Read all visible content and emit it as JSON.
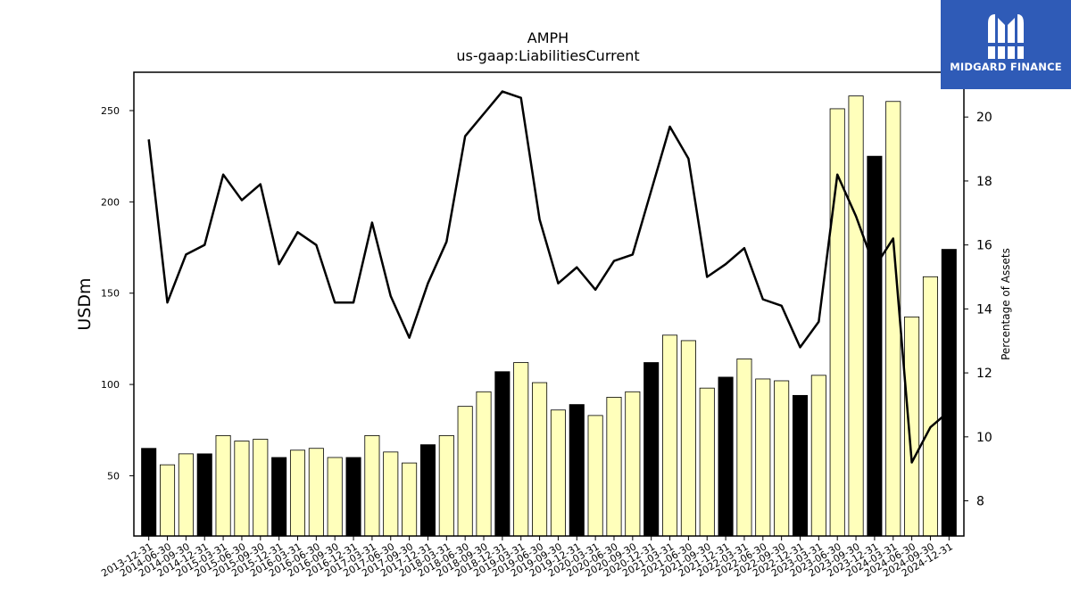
{
  "title": "AMPH",
  "subtitle": "us-gaap:LiabilitiesCurrent",
  "logo": {
    "text": "MIDGARD FINANCE"
  },
  "colors": {
    "bar_light": "#ffffbb",
    "bar_dark": "#000000",
    "line": "#000000",
    "logo_bg": "#2f5bb7"
  },
  "chart_data": {
    "type": "bar",
    "title": "AMPH",
    "subtitle": "us-gaap:LiabilitiesCurrent",
    "ylabel": "USDm",
    "y2label": "Percentage of Assets",
    "ylim": [
      17,
      271
    ],
    "y2lim": [
      6.9,
      21.4
    ],
    "yticks": [
      50,
      100,
      150,
      200,
      250
    ],
    "y2ticks": [
      8,
      10,
      12,
      14,
      16,
      18,
      20
    ],
    "categories": [
      "2013-12-31",
      "2014-06-30",
      "2014-09-30",
      "2014-12-31",
      "2015-03-31",
      "2015-06-30",
      "2015-09-30",
      "2015-12-31",
      "2016-03-31",
      "2016-06-30",
      "2016-09-30",
      "2016-12-31",
      "2017-03-31",
      "2017-06-30",
      "2017-09-30",
      "2017-12-31",
      "2018-03-31",
      "2018-06-30",
      "2018-09-30",
      "2018-12-31",
      "2019-03-31",
      "2019-06-30",
      "2019-09-30",
      "2019-12-31",
      "2020-03-31",
      "2020-06-30",
      "2020-09-30",
      "2020-12-31",
      "2021-03-31",
      "2021-06-30",
      "2021-09-30",
      "2021-12-31",
      "2022-03-31",
      "2022-06-30",
      "2022-09-30",
      "2022-12-31",
      "2023-03-31",
      "2023-06-30",
      "2023-09-30",
      "2023-12-31",
      "2024-03-31",
      "2024-06-30",
      "2024-09-30",
      "2024-12-31"
    ],
    "series": [
      {
        "type": "bar",
        "values": [
          65,
          56,
          62,
          62,
          72,
          69,
          70,
          60,
          64,
          65,
          60,
          60,
          72,
          63,
          57,
          67,
          72,
          88,
          96,
          107,
          112,
          101,
          86,
          89,
          83,
          93,
          96,
          112,
          127,
          124,
          98,
          104,
          114,
          103,
          102,
          94,
          105,
          251,
          258,
          225,
          255,
          137,
          159,
          174
        ],
        "dark": [
          true,
          false,
          false,
          true,
          false,
          false,
          false,
          true,
          false,
          false,
          false,
          true,
          false,
          false,
          false,
          true,
          false,
          false,
          false,
          true,
          false,
          false,
          false,
          true,
          false,
          false,
          false,
          true,
          false,
          false,
          false,
          true,
          false,
          false,
          false,
          true,
          false,
          false,
          false,
          true,
          false,
          false,
          false,
          true
        ]
      },
      {
        "type": "line",
        "axis": "right",
        "values": [
          19.3,
          14.2,
          15.7,
          16.0,
          18.2,
          17.4,
          17.9,
          15.4,
          16.4,
          16.0,
          14.2,
          14.2,
          16.7,
          14.4,
          13.1,
          14.8,
          16.1,
          19.4,
          20.1,
          20.8,
          20.6,
          16.8,
          14.8,
          15.3,
          14.6,
          15.5,
          15.7,
          17.7,
          19.7,
          18.7,
          15.0,
          15.4,
          15.9,
          14.3,
          14.1,
          12.8,
          13.6,
          18.2,
          16.9,
          15.3,
          16.2,
          9.2,
          10.3,
          10.8
        ]
      }
    ]
  }
}
